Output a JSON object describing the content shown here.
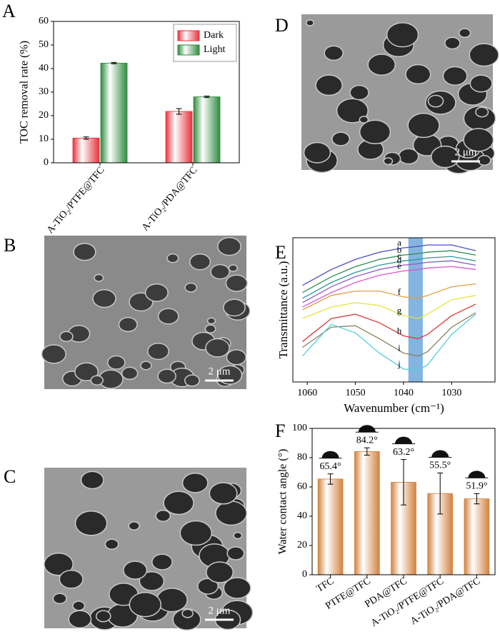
{
  "chart_data": [
    {
      "type": "bar",
      "label": "A",
      "ylabel": "TOC removal rate (%)",
      "categories": [
        "A-TiO₂/PTFE@TFC",
        "A-TiO₂/PDA@TFC"
      ],
      "series": [
        {
          "name": "Dark",
          "color": "#e8323c",
          "values": [
            10.5,
            21.8
          ],
          "errors": [
            0.5,
            1.2
          ]
        },
        {
          "name": "Light",
          "color": "#2e8b3e",
          "values": [
            42.3,
            28
          ],
          "errors": [
            0.3,
            0.3
          ]
        }
      ],
      "ylim": [
        0,
        60
      ],
      "yticks": [
        0,
        10,
        20,
        30,
        40,
        50,
        60
      ],
      "legend": "upper right"
    },
    {
      "type": "line",
      "label": "E",
      "xlabel": "Wavenumber (cm⁻¹)",
      "ylabel": "Transmittance (a.u.)",
      "x": [
        1061,
        1055,
        1050,
        1045,
        1040,
        1037,
        1035,
        1030,
        1025
      ],
      "xlim": [
        1063,
        1021
      ],
      "xticks": [
        1060,
        1050,
        1040,
        1030
      ],
      "ylim": [
        0,
        100
      ],
      "highlight": [
        1039,
        1036
      ],
      "highlight_color": "#5b9bd5",
      "series": [
        {
          "name": "a",
          "color": "#4b4bc8",
          "values": [
            67,
            78,
            85,
            90,
            93,
            94,
            95,
            95,
            91
          ]
        },
        {
          "name": "b",
          "color": "#2f8f4f",
          "values": [
            62,
            73,
            80,
            85,
            88,
            89,
            90,
            91,
            88
          ]
        },
        {
          "name": "c",
          "color": "#2a9a9a",
          "values": [
            58,
            69,
            76,
            81,
            84,
            85,
            86,
            87,
            84
          ]
        },
        {
          "name": "d",
          "color": "#8a5ac8",
          "values": [
            55,
            66,
            73,
            78,
            81,
            82,
            83,
            84,
            81
          ]
        },
        {
          "name": "e",
          "color": "#e055d0",
          "values": [
            52,
            62,
            69,
            74,
            77,
            78,
            79,
            80,
            78
          ]
        },
        {
          "name": "f",
          "color": "#e0a040",
          "values": [
            50,
            60,
            63,
            63,
            59,
            58,
            60,
            66,
            68
          ]
        },
        {
          "name": "g",
          "color": "#e8e040",
          "values": [
            44,
            52,
            55,
            53,
            46,
            44,
            47,
            57,
            60
          ]
        },
        {
          "name": "h",
          "color": "#d83a3a",
          "values": [
            28,
            44,
            47,
            41,
            32,
            30,
            33,
            46,
            54
          ]
        },
        {
          "name": "i",
          "color": "#8a8060",
          "values": [
            24,
            38,
            39,
            30,
            20,
            18,
            21,
            38,
            48
          ]
        },
        {
          "name": "j",
          "color": "#50d0d8",
          "values": [
            18,
            40,
            34,
            20,
            9,
            8,
            12,
            33,
            47
          ]
        }
      ]
    },
    {
      "type": "bar",
      "label": "F",
      "ylabel": "Water contact angle (°)",
      "categories": [
        "TFC",
        "PTFE@TFC",
        "PDA@TFC",
        "A-TiO₂/PTFE@TFC",
        "A-TiO₂/PDA@TFC"
      ],
      "values": [
        65.4,
        84.2,
        63.2,
        55.5,
        51.9
      ],
      "errors": [
        3.5,
        2.5,
        15.5,
        14,
        3.5
      ],
      "value_labels": [
        "65.4°",
        "84.2°",
        "63.2°",
        "55.5°",
        "51.9°"
      ],
      "color": "#d2823e",
      "ylim": [
        0,
        100
      ],
      "yticks": [
        0,
        20,
        40,
        60,
        80,
        100
      ]
    }
  ],
  "images": [
    {
      "label": "D",
      "scale_bar": "2 μm"
    },
    {
      "label": "B",
      "scale_bar": "2 μm"
    },
    {
      "label": "C",
      "scale_bar": "2 μm"
    }
  ]
}
